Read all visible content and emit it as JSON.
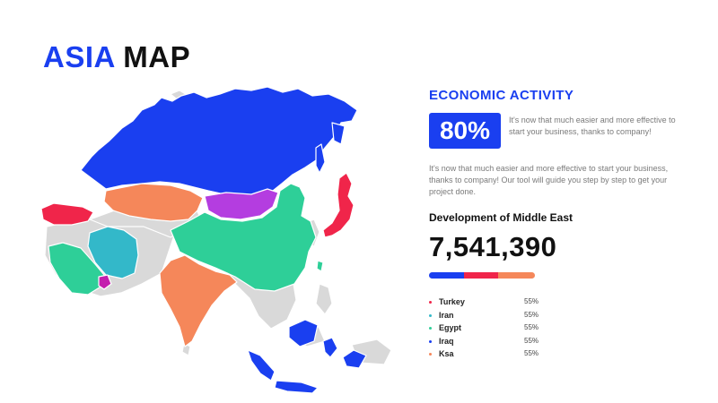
{
  "title": {
    "word1": "ASIA",
    "word2": "MAP"
  },
  "colors": {
    "blue": "#1a3ff0",
    "red": "#f0254a",
    "orange": "#f5875a",
    "green": "#2ecf98",
    "purple": "#b43de0",
    "teal": "#33b8c9",
    "magenta": "#c41fae",
    "gray": "#d9d9d9"
  },
  "map": {
    "region": "Asia",
    "highlighted_countries": [
      {
        "name": "Russia",
        "color": "#1a3ff0"
      },
      {
        "name": "Kazakhstan",
        "color": "#f5875a"
      },
      {
        "name": "Mongolia",
        "color": "#b43de0"
      },
      {
        "name": "China",
        "color": "#2ecf98"
      },
      {
        "name": "India",
        "color": "#f5875a"
      },
      {
        "name": "Iran",
        "color": "#33b8c9"
      },
      {
        "name": "Saudi Arabia",
        "color": "#2ecf98"
      },
      {
        "name": "Turkey",
        "color": "#f0254a"
      },
      {
        "name": "Japan",
        "color": "#f0254a"
      },
      {
        "name": "Indonesia",
        "color": "#1a3ff0"
      },
      {
        "name": "Oman",
        "color": "#c41fae"
      }
    ]
  },
  "economic": {
    "heading": "ECONOMIC ACTIVITY",
    "percent": "80%",
    "short_text": "It's now that much easier and more effective to start your business, thanks to company!",
    "long_text": "It's now that much easier and more effective to start your business, thanks to company! Our tool will guide you step by step to get your project done."
  },
  "development": {
    "heading": "Development of Middle East",
    "value": "7,541,390",
    "bar": [
      {
        "color": "#1a3ff0",
        "fraction": 0.33
      },
      {
        "color": "#f0254a",
        "fraction": 0.32
      },
      {
        "color": "#f5875a",
        "fraction": 0.35
      }
    ]
  },
  "legend": [
    {
      "name": "Turkey",
      "value": "55%",
      "color": "#f0254a"
    },
    {
      "name": "Iran",
      "value": "55%",
      "color": "#33b8c9"
    },
    {
      "name": "Egypt",
      "value": "55%",
      "color": "#2ecf98"
    },
    {
      "name": "Iraq",
      "value": "55%",
      "color": "#1a3ff0"
    },
    {
      "name": "Ksa",
      "value": "55%",
      "color": "#f5875a"
    }
  ]
}
